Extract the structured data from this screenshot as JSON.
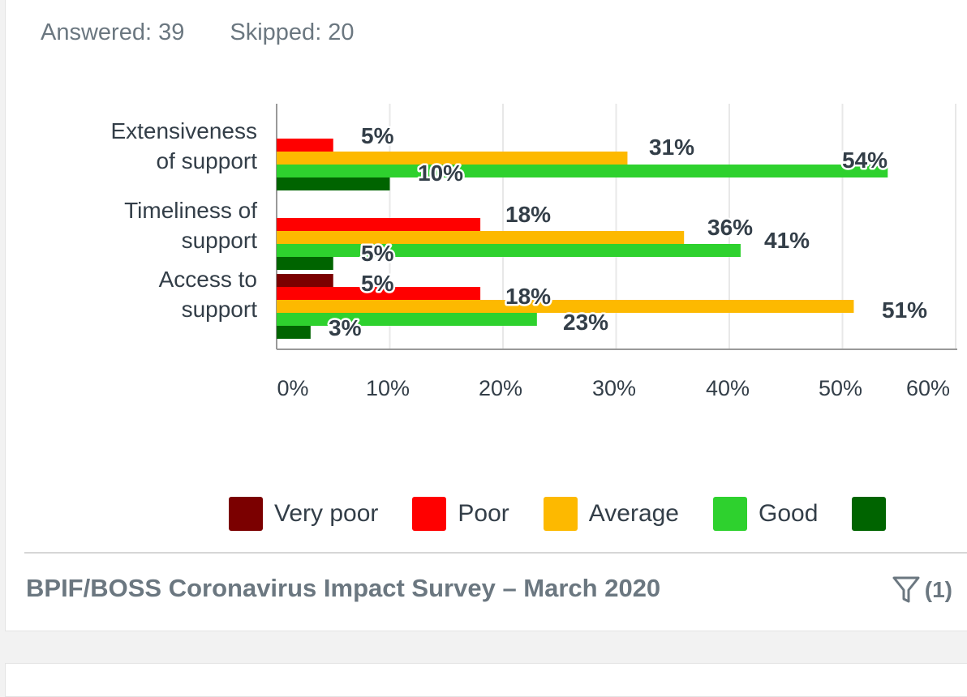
{
  "stats": {
    "answered": "Answered: 39",
    "skipped": "Skipped: 20"
  },
  "colors": {
    "very_poor": "#7b0000",
    "poor": "#ff0000",
    "average": "#fdb900",
    "good": "#2ed12e",
    "very_good": "#006400",
    "axis": "#999999",
    "grid": "#e8e8e8"
  },
  "chart_data": {
    "type": "bar",
    "orientation": "horizontal",
    "title": "",
    "xlabel": "",
    "ylabel": "",
    "xlim": [
      0,
      60
    ],
    "x_ticks": [
      "0%",
      "10%",
      "20%",
      "30%",
      "40%",
      "50%",
      "60%"
    ],
    "categories": [
      [
        "Extensiveness",
        "of support"
      ],
      [
        "Timeliness of",
        "support"
      ],
      [
        "Access to",
        "support"
      ]
    ],
    "grid": true,
    "legend_position": "bottom",
    "series": [
      {
        "name": "Very poor",
        "color_key": "very_poor",
        "values": [
          0,
          0,
          5
        ]
      },
      {
        "name": "Poor",
        "color_key": "poor",
        "values": [
          5,
          18,
          18
        ]
      },
      {
        "name": "Average",
        "color_key": "average",
        "values": [
          31,
          36,
          51
        ]
      },
      {
        "name": "Good",
        "color_key": "good",
        "values": [
          54,
          41,
          23
        ]
      },
      {
        "name": "",
        "color_key": "very_good",
        "values": [
          10,
          5,
          3
        ]
      }
    ],
    "data_labels": [
      [
        "",
        "5%",
        "31%",
        "54%",
        "10%"
      ],
      [
        "",
        "18%",
        "36%",
        "41%",
        "5%"
      ],
      [
        "5%",
        "18%",
        "51%",
        "23%",
        "3%"
      ]
    ]
  },
  "footer": {
    "title": "BPIF/BOSS Coronavirus Impact Survey – March 2020",
    "filter_count": "(1)",
    "filter_icon": "filter-icon"
  }
}
